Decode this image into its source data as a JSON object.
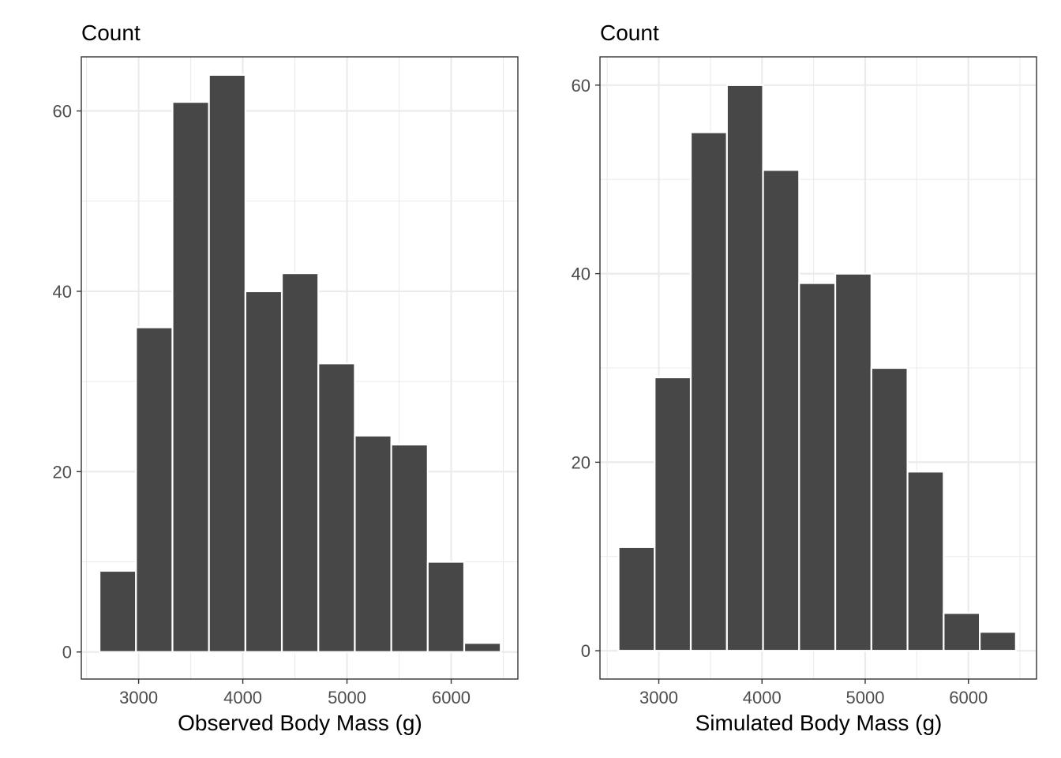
{
  "chart_data": [
    {
      "type": "bar",
      "title": "",
      "ylabel": "Count",
      "xlabel": "Observed Body Mass (g)",
      "xlim": [
        2450,
        6640
      ],
      "ylim": [
        -3,
        66
      ],
      "xticks": [
        3000,
        4000,
        5000,
        6000
      ],
      "xminor": [
        2500,
        3500,
        4500,
        5500,
        6500
      ],
      "yticks": [
        0,
        20,
        40,
        60
      ],
      "yminor": [
        10,
        30,
        50
      ],
      "bins": [
        {
          "x0": 2625,
          "x1": 2975,
          "count": 9
        },
        {
          "x0": 2975,
          "x1": 3325,
          "count": 36
        },
        {
          "x0": 3325,
          "x1": 3675,
          "count": 61
        },
        {
          "x0": 3675,
          "x1": 4025,
          "count": 64
        },
        {
          "x0": 4025,
          "x1": 4375,
          "count": 40
        },
        {
          "x0": 4375,
          "x1": 4725,
          "count": 42
        },
        {
          "x0": 4725,
          "x1": 5075,
          "count": 32
        },
        {
          "x0": 5075,
          "x1": 5425,
          "count": 24
        },
        {
          "x0": 5425,
          "x1": 5775,
          "count": 23
        },
        {
          "x0": 5775,
          "x1": 6125,
          "count": 10
        },
        {
          "x0": 6125,
          "x1": 6475,
          "count": 1
        }
      ],
      "bar_color": "#474747",
      "grid": true
    },
    {
      "type": "bar",
      "title": "",
      "ylabel": "Count",
      "xlabel": "Simulated Body Mass (g)",
      "xlim": [
        2430,
        6660
      ],
      "ylim": [
        -3,
        63
      ],
      "xticks": [
        3000,
        4000,
        5000,
        6000
      ],
      "xminor": [
        2500,
        3500,
        4500,
        5500,
        6500
      ],
      "yticks": [
        0,
        20,
        40,
        60
      ],
      "yminor": [
        10,
        30,
        50
      ],
      "bins": [
        {
          "x0": 2610,
          "x1": 2960,
          "count": 11
        },
        {
          "x0": 2960,
          "x1": 3310,
          "count": 29
        },
        {
          "x0": 3310,
          "x1": 3660,
          "count": 55
        },
        {
          "x0": 3660,
          "x1": 4010,
          "count": 60
        },
        {
          "x0": 4010,
          "x1": 4360,
          "count": 51
        },
        {
          "x0": 4360,
          "x1": 4710,
          "count": 39
        },
        {
          "x0": 4710,
          "x1": 5060,
          "count": 40
        },
        {
          "x0": 5060,
          "x1": 5410,
          "count": 30
        },
        {
          "x0": 5410,
          "x1": 5760,
          "count": 19
        },
        {
          "x0": 5760,
          "x1": 6110,
          "count": 4
        },
        {
          "x0": 6110,
          "x1": 6460,
          "count": 2
        }
      ],
      "bar_color": "#474747",
      "grid": true
    }
  ]
}
